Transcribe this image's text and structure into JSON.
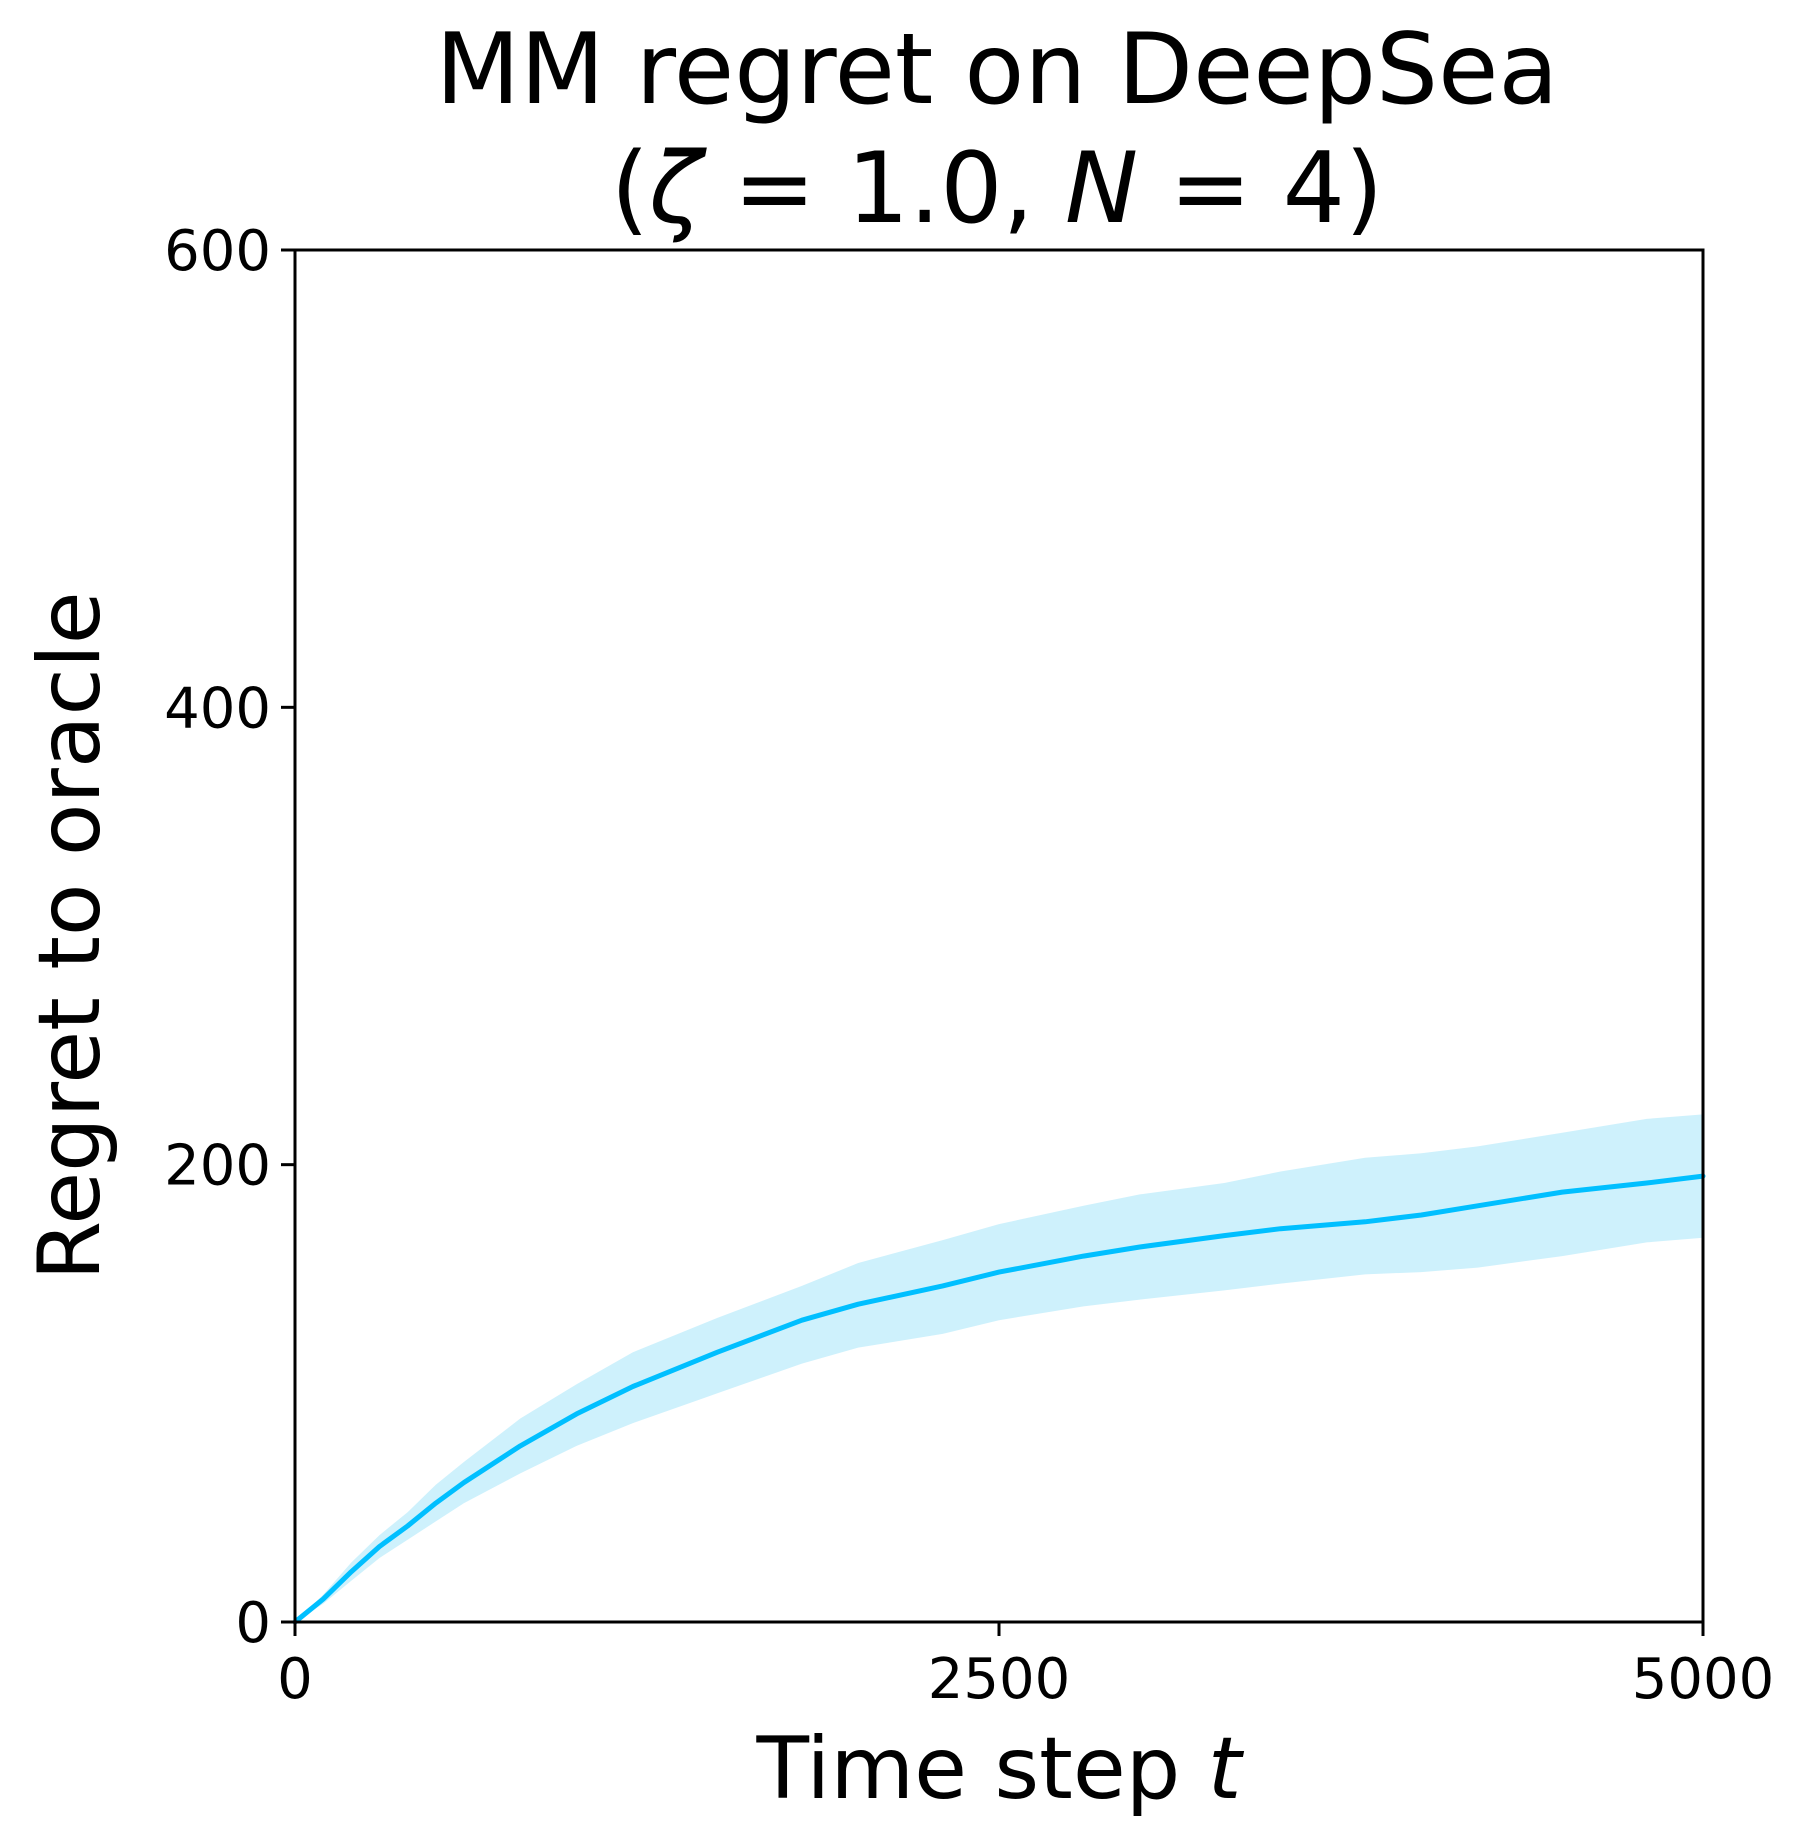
{
  "chart_data": {
    "type": "line",
    "title_line1": "MM regret on DeepSea",
    "title_line2": {
      "open": "(",
      "zeta": "ζ",
      "zeta_eq": " = 1.0, ",
      "n": "N",
      "n_eq": " = 4)"
    },
    "xlabel": {
      "text": "Time step ",
      "var": "t"
    },
    "ylabel": "Regret to oracle",
    "xlim": [
      0,
      5000
    ],
    "ylim": [
      0,
      600
    ],
    "xticks": [
      0,
      2500,
      5000
    ],
    "xtick_labels": [
      "0",
      "2500",
      "5000"
    ],
    "yticks": [
      0,
      200,
      400,
      600
    ],
    "ytick_labels": [
      "0",
      "200",
      "400",
      "600"
    ],
    "grid": false,
    "series": [
      {
        "color": "#00bfff",
        "band_color": "#a6e6fa",
        "x": [
          0,
          100,
          200,
          300,
          400,
          500,
          600,
          800,
          1000,
          1200,
          1500,
          1800,
          2000,
          2300,
          2500,
          2800,
          3000,
          3300,
          3500,
          3800,
          4000,
          4200,
          4500,
          4800,
          5000
        ],
        "y": [
          0,
          10,
          22,
          33,
          42,
          52,
          61,
          77,
          91,
          103,
          118,
          132,
          139,
          147,
          153,
          160,
          164,
          169,
          172,
          175,
          178,
          182,
          188,
          192,
          195
        ],
        "lower": [
          0,
          8,
          18,
          28,
          36,
          44,
          52,
          65,
          77,
          87,
          100,
          113,
          120,
          126,
          132,
          138,
          141,
          145,
          148,
          152,
          153,
          155,
          160,
          166,
          168
        ],
        "upper": [
          0,
          12,
          26,
          38,
          48,
          60,
          70,
          89,
          104,
          118,
          133,
          147,
          157,
          167,
          174,
          182,
          187,
          192,
          197,
          203,
          205,
          208,
          214,
          220,
          222
        ]
      }
    ]
  }
}
